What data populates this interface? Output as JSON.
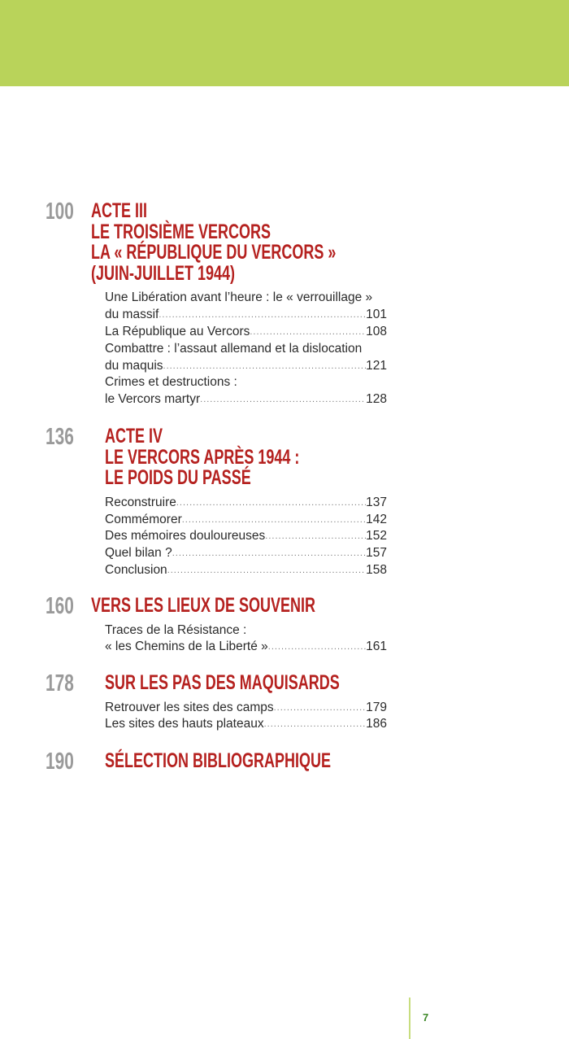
{
  "colors": {
    "band": "#b9d35a",
    "heading": "#b5211f",
    "page_number_gray": "#9a9a9a",
    "folio": "#3f8a2a"
  },
  "sections": [
    {
      "page": "100",
      "heading": [
        "ACTE III",
        "LE TROISIÈME VERCORS",
        "LA « RÉPUBLIQUE DU VERCORS »",
        "(JUIN-JUILLET 1944)"
      ],
      "entries": [
        {
          "lines": [
            "Une Libération avant l’heure : le « verrouillage »",
            "du massif"
          ],
          "page": "101"
        },
        {
          "lines": [
            "La République au Vercors"
          ],
          "page": "108"
        },
        {
          "lines": [
            "Combattre : l’assaut allemand et la dislocation",
            "du maquis"
          ],
          "page": "121"
        },
        {
          "lines": [
            "Crimes et destructions :",
            "le Vercors martyr"
          ],
          "page": "128"
        }
      ]
    },
    {
      "page": "136",
      "heading": [
        "ACTE IV",
        "LE VERCORS APRÈS 1944 :",
        "LE POIDS DU PASSÉ"
      ],
      "entries": [
        {
          "lines": [
            "Reconstruire"
          ],
          "page": "137"
        },
        {
          "lines": [
            "Commémorer"
          ],
          "page": "142"
        },
        {
          "lines": [
            "Des mémoires douloureuses"
          ],
          "page": "152"
        },
        {
          "lines": [
            "Quel bilan ?"
          ],
          "page": "157"
        },
        {
          "lines": [
            "Conclusion"
          ],
          "page": "158"
        }
      ]
    },
    {
      "page": "160",
      "heading": [
        "VERS LES LIEUX DE SOUVENIR"
      ],
      "entries": [
        {
          "lines": [
            "Traces de la Résistance :",
            "« les Chemins de la Liberté »"
          ],
          "page": "161"
        }
      ]
    },
    {
      "page": "178",
      "heading": [
        "SUR LES PAS DES MAQUISARDS"
      ],
      "entries": [
        {
          "lines": [
            "Retrouver les sites des camps"
          ],
          "page": "179"
        },
        {
          "lines": [
            "Les sites des hauts plateaux"
          ],
          "page": "186"
        }
      ]
    },
    {
      "page": "190",
      "heading": [
        "SÉLECTION BIBLIOGRAPHIQUE"
      ],
      "entries": []
    }
  ],
  "folio": "7"
}
